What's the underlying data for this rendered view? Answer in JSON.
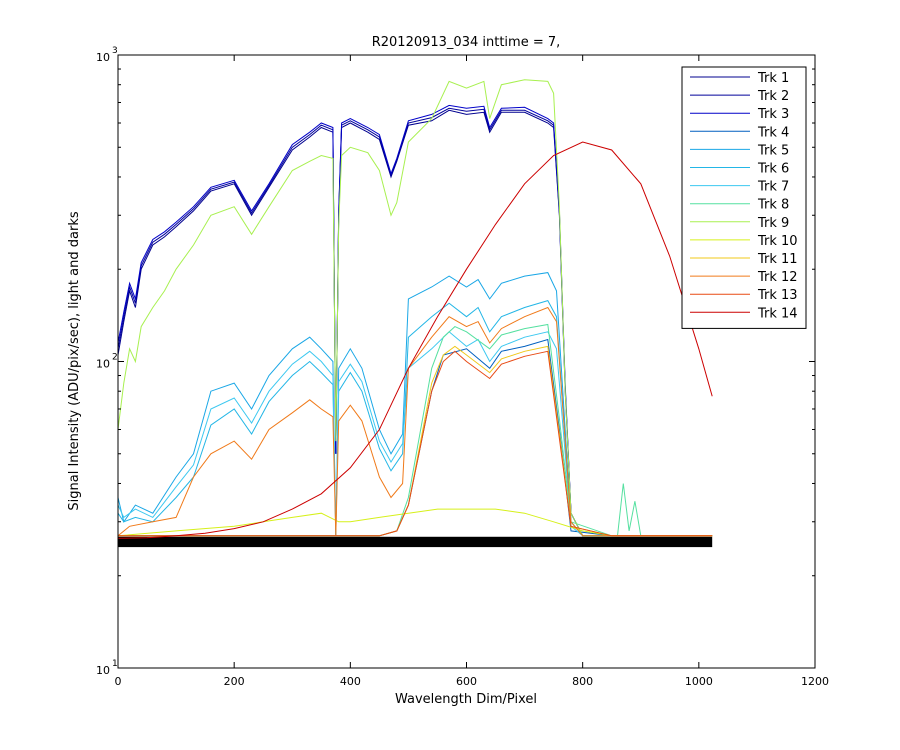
{
  "chart_data": {
    "type": "line",
    "title": "R20120913_034 inttime = 7,",
    "xlabel": "Wavelength Dim/Pixel",
    "ylabel": "Signal Intensity (ADU/pix/sec), light and darks",
    "xlim": [
      0,
      1200
    ],
    "ylim": [
      10,
      1000
    ],
    "yscale": "log",
    "xticks": [
      0,
      200,
      400,
      600,
      800,
      1000,
      1200
    ],
    "yticks": [
      {
        "base": "10",
        "exp": "1",
        "value": 10
      },
      {
        "base": "10",
        "exp": "2",
        "value": 100
      },
      {
        "base": "10",
        "exp": "3",
        "value": 1000
      }
    ],
    "legend_position": "top-right",
    "series": [
      {
        "name": "Trk 1",
        "color": "#00008f",
        "x": [
          0,
          10,
          20,
          30,
          40,
          60,
          80,
          100,
          130,
          160,
          200,
          230,
          260,
          300,
          330,
          350,
          370,
          375,
          380,
          385,
          400,
          430,
          450,
          470,
          480,
          500,
          540,
          570,
          600,
          630,
          640,
          660,
          700,
          740,
          750,
          760,
          770,
          780,
          800,
          850,
          900,
          950,
          1000,
          1023
        ],
        "y": [
          105,
          135,
          170,
          150,
          200,
          240,
          255,
          275,
          310,
          360,
          380,
          300,
          370,
          490,
          540,
          580,
          560,
          50,
          300,
          580,
          600,
          560,
          530,
          400,
          450,
          590,
          610,
          660,
          640,
          650,
          560,
          650,
          650,
          600,
          580,
          300,
          80,
          32,
          27,
          27,
          27,
          27,
          27,
          27
        ]
      },
      {
        "name": "Trk 2",
        "color": "#00009a",
        "x": [
          0,
          10,
          20,
          30,
          40,
          60,
          80,
          100,
          130,
          160,
          200,
          230,
          260,
          300,
          330,
          350,
          370,
          375,
          380,
          385,
          400,
          430,
          450,
          470,
          480,
          500,
          540,
          570,
          600,
          630,
          640,
          660,
          700,
          740,
          750,
          760,
          770,
          780,
          800,
          850,
          900,
          950,
          1000,
          1023
        ],
        "y": [
          110,
          140,
          175,
          155,
          205,
          245,
          260,
          280,
          315,
          365,
          385,
          305,
          375,
          500,
          550,
          590,
          570,
          50,
          305,
          590,
          610,
          570,
          540,
          405,
          455,
          600,
          625,
          670,
          655,
          665,
          570,
          660,
          660,
          610,
          590,
          305,
          82,
          32,
          27,
          27,
          27,
          27,
          27,
          27
        ]
      },
      {
        "name": "Trk 3",
        "color": "#0000c8",
        "x": [
          0,
          10,
          20,
          30,
          40,
          60,
          80,
          100,
          130,
          160,
          200,
          230,
          260,
          300,
          330,
          350,
          370,
          375,
          380,
          385,
          400,
          430,
          450,
          470,
          480,
          500,
          540,
          570,
          600,
          630,
          640,
          660,
          700,
          740,
          750,
          760,
          770,
          780,
          800,
          850,
          900,
          950,
          1000,
          1023
        ],
        "y": [
          115,
          145,
          180,
          160,
          210,
          250,
          265,
          285,
          320,
          370,
          390,
          310,
          380,
          510,
          560,
          600,
          580,
          50,
          310,
          600,
          620,
          580,
          550,
          410,
          460,
          610,
          640,
          685,
          670,
          680,
          580,
          670,
          675,
          620,
          600,
          310,
          84,
          32,
          27,
          27,
          27,
          27,
          27,
          27
        ]
      },
      {
        "name": "Trk 4",
        "color": "#005fbf",
        "x": [
          0,
          40,
          100,
          200,
          300,
          350,
          370,
          380,
          400,
          450,
          480,
          500,
          540,
          560,
          600,
          640,
          660,
          700,
          740,
          760,
          780,
          850,
          1023
        ],
        "y": [
          27,
          27,
          27,
          27,
          27,
          27,
          27,
          27,
          27,
          27,
          28,
          34,
          80,
          105,
          110,
          95,
          108,
          112,
          118,
          60,
          28,
          27,
          27
        ]
      },
      {
        "name": "Trk 5",
        "color": "#1aa7e6",
        "x": [
          0,
          10,
          30,
          60,
          100,
          130,
          160,
          200,
          230,
          260,
          300,
          330,
          350,
          370,
          375,
          380,
          400,
          420,
          450,
          470,
          490,
          500,
          540,
          570,
          600,
          620,
          640,
          660,
          700,
          740,
          755,
          770,
          780,
          800,
          850,
          1023
        ],
        "y": [
          36,
          30,
          34,
          32,
          42,
          50,
          80,
          85,
          70,
          90,
          110,
          120,
          110,
          100,
          27,
          95,
          110,
          95,
          60,
          50,
          58,
          160,
          175,
          190,
          175,
          185,
          160,
          180,
          190,
          195,
          170,
          60,
          30,
          27,
          27,
          27
        ]
      },
      {
        "name": "Trk 6",
        "color": "#23b6e6",
        "x": [
          0,
          10,
          30,
          60,
          100,
          130,
          160,
          200,
          230,
          260,
          300,
          330,
          350,
          370,
          375,
          380,
          400,
          420,
          450,
          470,
          490,
          500,
          540,
          570,
          600,
          620,
          640,
          660,
          700,
          740,
          755,
          770,
          780,
          800,
          850,
          1023
        ],
        "y": [
          32,
          30,
          31,
          30,
          36,
          42,
          62,
          70,
          58,
          74,
          90,
          100,
          92,
          84,
          27,
          80,
          92,
          80,
          52,
          44,
          50,
          120,
          140,
          155,
          140,
          150,
          125,
          140,
          150,
          158,
          140,
          55,
          30,
          27,
          27,
          27
        ]
      },
      {
        "name": "Trk 7",
        "color": "#3cc8f0",
        "x": [
          0,
          10,
          30,
          60,
          100,
          130,
          160,
          200,
          230,
          260,
          300,
          330,
          350,
          370,
          375,
          380,
          400,
          420,
          450,
          470,
          490,
          500,
          540,
          570,
          600,
          620,
          640,
          660,
          700,
          740,
          755,
          770,
          780,
          800,
          850,
          1023
        ],
        "y": [
          34,
          31,
          33,
          31,
          39,
          46,
          70,
          76,
          63,
          80,
          98,
          108,
          100,
          90,
          27,
          86,
          98,
          86,
          55,
          47,
          54,
          95,
          110,
          125,
          112,
          118,
          100,
          112,
          120,
          125,
          110,
          50,
          29,
          27,
          27,
          27
        ]
      },
      {
        "name": "Trk 8",
        "color": "#55e0a0",
        "x": [
          0,
          40,
          100,
          200,
          300,
          350,
          370,
          380,
          400,
          450,
          480,
          500,
          540,
          560,
          580,
          600,
          640,
          660,
          700,
          740,
          760,
          780,
          850,
          860,
          870,
          880,
          890,
          900,
          1023
        ],
        "y": [
          27,
          27,
          27,
          27,
          27,
          27,
          27,
          27,
          27,
          27,
          28,
          36,
          95,
          120,
          130,
          125,
          110,
          122,
          128,
          132,
          65,
          30,
          27,
          27,
          40,
          28,
          35,
          27,
          27
        ]
      },
      {
        "name": "Trk 9",
        "color": "#a8f050",
        "x": [
          0,
          10,
          20,
          30,
          40,
          60,
          80,
          100,
          130,
          160,
          200,
          230,
          260,
          300,
          330,
          350,
          370,
          375,
          380,
          385,
          400,
          430,
          450,
          470,
          480,
          500,
          540,
          570,
          600,
          630,
          640,
          660,
          700,
          740,
          750,
          760,
          770,
          780,
          800,
          850,
          900,
          950,
          1000,
          1023
        ],
        "y": [
          60,
          85,
          110,
          100,
          130,
          150,
          170,
          200,
          240,
          300,
          320,
          260,
          320,
          420,
          450,
          470,
          460,
          55,
          280,
          470,
          500,
          480,
          420,
          300,
          330,
          520,
          620,
          820,
          780,
          820,
          620,
          800,
          830,
          820,
          750,
          320,
          80,
          32,
          27,
          27,
          27,
          27,
          27,
          27
        ]
      },
      {
        "name": "Trk 10",
        "color": "#d6f01a",
        "x": [
          0,
          100,
          200,
          250,
          300,
          350,
          380,
          400,
          450,
          500,
          550,
          600,
          650,
          700,
          750,
          800,
          850,
          1023
        ],
        "y": [
          27,
          28,
          29,
          30,
          31,
          32,
          30,
          30,
          31,
          32,
          33,
          33,
          33,
          32,
          30,
          28,
          27,
          27
        ]
      },
      {
        "name": "Trk 11",
        "color": "#f0c81a",
        "x": [
          0,
          40,
          100,
          200,
          300,
          350,
          370,
          380,
          400,
          450,
          480,
          500,
          540,
          560,
          580,
          600,
          640,
          660,
          700,
          740,
          760,
          780,
          850,
          1023
        ],
        "y": [
          27,
          27,
          27,
          27,
          27,
          27,
          27,
          27,
          27,
          27,
          28,
          34,
          85,
          105,
          112,
          105,
          92,
          102,
          108,
          112,
          58,
          29,
          27,
          27
        ]
      },
      {
        "name": "Trk 12",
        "color": "#f07a1a",
        "x": [
          0,
          20,
          60,
          100,
          130,
          160,
          200,
          230,
          260,
          300,
          330,
          350,
          370,
          375,
          380,
          400,
          420,
          450,
          470,
          490,
          500,
          540,
          570,
          600,
          620,
          640,
          660,
          700,
          740,
          755,
          770,
          780,
          800,
          850,
          1023
        ],
        "y": [
          27,
          29,
          30,
          31,
          42,
          50,
          55,
          48,
          60,
          68,
          75,
          70,
          66,
          27,
          64,
          72,
          64,
          42,
          36,
          40,
          95,
          120,
          140,
          130,
          135,
          115,
          128,
          140,
          150,
          135,
          55,
          30,
          27,
          27,
          27
        ]
      },
      {
        "name": "Trk 13",
        "color": "#e84a14",
        "x": [
          0,
          40,
          100,
          200,
          300,
          350,
          370,
          380,
          400,
          450,
          480,
          500,
          540,
          560,
          580,
          600,
          640,
          660,
          700,
          740,
          760,
          780,
          850,
          1023
        ],
        "y": [
          27,
          27,
          27,
          27,
          27,
          27,
          27,
          27,
          27,
          27,
          28,
          34,
          80,
          100,
          108,
          100,
          88,
          98,
          104,
          108,
          56,
          29,
          27,
          27
        ]
      },
      {
        "name": "Trk 14",
        "color": "#cc0000",
        "x": [
          0,
          50,
          100,
          150,
          200,
          250,
          300,
          350,
          400,
          450,
          500,
          550,
          600,
          650,
          700,
          750,
          800,
          850,
          900,
          950,
          1000,
          1023
        ],
        "y": [
          26.5,
          26.6,
          27,
          27.5,
          28.5,
          30,
          33,
          37,
          45,
          60,
          95,
          140,
          200,
          280,
          380,
          470,
          520,
          490,
          380,
          220,
          110,
          77
        ]
      }
    ]
  }
}
